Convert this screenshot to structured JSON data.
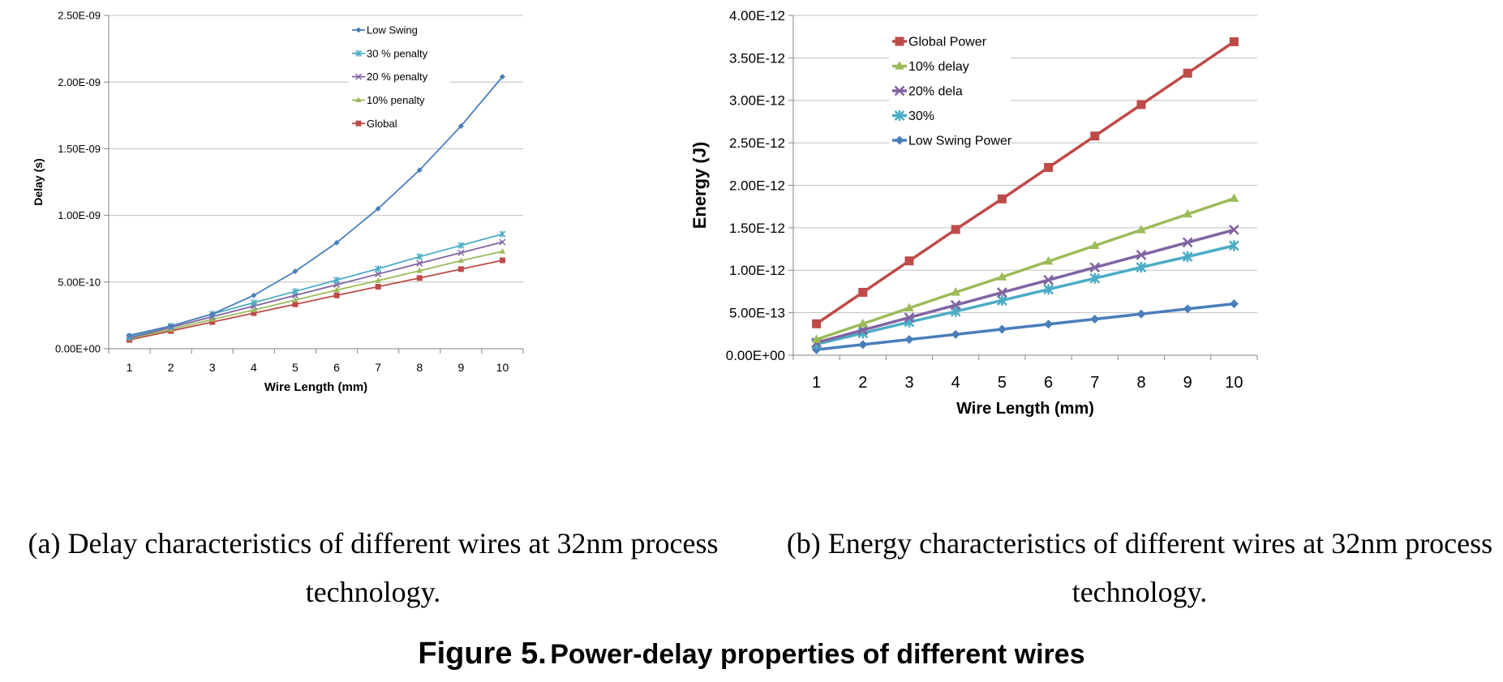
{
  "colors": {
    "low_swing": "#4A7EBB",
    "penalty_30": "#4BACC6",
    "penalty_20": "#8064A2",
    "penalty_10": "#9BBB59",
    "global": "#BE4B48",
    "axis": "#868686",
    "grid": "#BFBFBF"
  },
  "chart_data": [
    {
      "type": "line",
      "x": [
        1,
        2,
        3,
        4,
        5,
        6,
        7,
        8,
        9,
        10
      ],
      "xlabel": "Wire Length (mm)",
      "ylabel": "Delay (s)",
      "ylim": [
        0,
        2.5e-09
      ],
      "yticks": [
        "0.00E+00",
        "5.00E-10",
        "1.00E-09",
        "1.50E-09",
        "2.00E-09",
        "2.50E-09"
      ],
      "grid": true,
      "legend_position": "top-right",
      "series": [
        {
          "name": "Low Swing",
          "marker": "diamond",
          "color": "#4A7EBB",
          "values": [
            1e-10,
            1.7e-10,
            2.6e-10,
            4e-10,
            5.8e-10,
            7.95e-10,
            1.05e-09,
            1.34e-09,
            1.67e-09,
            2.04e-09
          ]
        },
        {
          "name": "30 % penalty",
          "marker": "asterisk",
          "color": "#4BACC6",
          "values": [
            9e-11,
            1.7e-10,
            2.6e-10,
            3.45e-10,
            4.3e-10,
            5.15e-10,
            6e-10,
            6.9e-10,
            7.75e-10,
            8.6e-10
          ]
        },
        {
          "name": "20 % penalty",
          "marker": "x",
          "color": "#8064A2",
          "values": [
            8e-11,
            1.6e-10,
            2.4e-10,
            3.2e-10,
            4e-10,
            4.8e-10,
            5.6e-10,
            6.4e-10,
            7.2e-10,
            8e-10
          ]
        },
        {
          "name": "10% penalty",
          "marker": "triangle",
          "color": "#9BBB59",
          "values": [
            7.5e-11,
            1.45e-10,
            2.2e-10,
            2.9e-10,
            3.65e-10,
            4.4e-10,
            5.1e-10,
            5.85e-10,
            6.6e-10,
            7.3e-10
          ]
        },
        {
          "name": "Global",
          "marker": "square",
          "color": "#BE4B48",
          "values": [
            6.6e-11,
            1.33e-10,
            2e-10,
            2.67e-10,
            3.33e-10,
            4e-10,
            4.65e-10,
            5.3e-10,
            5.97e-10,
            6.63e-10
          ]
        }
      ]
    },
    {
      "type": "line",
      "x": [
        1,
        2,
        3,
        4,
        5,
        6,
        7,
        8,
        9,
        10
      ],
      "xlabel": "Wire Length (mm)",
      "ylabel": "Energy  (J)",
      "ylim": [
        0,
        4e-12
      ],
      "yticks": [
        "0.00E+00",
        "5.00E-13",
        "1.00E-12",
        "1.50E-12",
        "2.00E-12",
        "2.50E-12",
        "3.00E-12",
        "3.50E-12",
        "4.00E-12"
      ],
      "grid": true,
      "legend_position": "top-left",
      "series": [
        {
          "name": "Global Power",
          "marker": "square",
          "color": "#BE4B48",
          "values": [
            3.7e-13,
            7.4e-13,
            1.11e-12,
            1.48e-12,
            1.84e-12,
            2.21e-12,
            2.58e-12,
            2.95e-12,
            3.32e-12,
            3.69e-12
          ]
        },
        {
          "name": "10% delay",
          "marker": "triangle",
          "color": "#9BBB59",
          "values": [
            1.85e-13,
            3.7e-13,
            5.55e-13,
            7.4e-13,
            9.2e-13,
            1.105e-12,
            1.29e-12,
            1.475e-12,
            1.66e-12,
            1.845e-12
          ]
        },
        {
          "name": "20% dela",
          "marker": "x",
          "color": "#8064A2",
          "values": [
            1.48e-13,
            2.95e-13,
            4.43e-13,
            5.9e-13,
            7.38e-13,
            8.85e-13,
            1.033e-12,
            1.18e-12,
            1.328e-12,
            1.476e-12
          ]
        },
        {
          "name": "30%",
          "marker": "asterisk",
          "color": "#4BACC6",
          "values": [
            1.3e-13,
            2.6e-13,
            3.9e-13,
            5.15e-13,
            6.45e-13,
            7.75e-13,
            9.05e-13,
            1.035e-12,
            1.16e-12,
            1.29e-12
          ]
        },
        {
          "name": "Low Swing Power",
          "marker": "diamond",
          "color": "#4A7EBB",
          "values": [
            6.5e-14,
            1.25e-13,
            1.85e-13,
            2.45e-13,
            3.05e-13,
            3.65e-13,
            4.25e-13,
            4.85e-13,
            5.45e-13,
            6.05e-13
          ]
        }
      ]
    }
  ],
  "captions": {
    "a_line1": "(a) Delay characteristics of different wires at 32nm process",
    "a_line2": "technology.",
    "b_line1": "(b) Energy characteristics of different wires at 32nm process",
    "b_line2": "technology."
  },
  "figure_title": {
    "lead": "Figure 5.",
    "rest": "Power-delay properties of different wires"
  }
}
